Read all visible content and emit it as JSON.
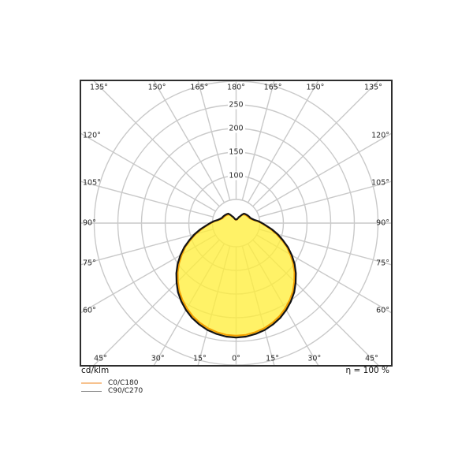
{
  "chart": {
    "angle_labels": {
      "top": [
        "135°",
        "150°",
        "165°",
        "180°",
        "165°",
        "150°",
        "135°"
      ],
      "left": [
        "120°",
        "105°",
        "90°",
        "75°",
        "60°"
      ],
      "right": [
        "120°",
        "105°",
        "90°",
        "75°",
        "60°"
      ],
      "bottom": [
        "45°",
        "30°",
        "15°",
        "0°",
        "15°",
        "30°",
        "45°"
      ]
    }
  },
  "footer": {
    "unit_label": "cd/klm",
    "efficiency_label": "η = 100 %"
  },
  "legend": {
    "items": [
      {
        "label": "C0/C180",
        "swatch_color": "#f7c28e"
      },
      {
        "label": "C90/C270",
        "swatch_color": "#8d8d8d"
      }
    ]
  },
  "chart_data": {
    "type": "polar",
    "units": "cd/klm",
    "efficiency_percent": 100,
    "angle_tick_step_deg": 15,
    "angle_tick_labels_deg": [
      0,
      15,
      30,
      45,
      60,
      75,
      90,
      105,
      120,
      135,
      150,
      165,
      180
    ],
    "radial_rings": [
      50,
      100,
      150,
      200,
      250,
      300
    ],
    "radial_tick_labels": [
      "100",
      "150",
      "200",
      "250"
    ],
    "grid_color": "#c9c9c9",
    "fill_color": "#ffee3c",
    "fill_opacity": 0.78,
    "symmetric_mirror": true,
    "gamma_angles_deg": [
      0,
      5,
      10,
      15,
      20,
      25,
      30,
      35,
      40,
      45,
      50,
      55,
      60,
      65,
      70,
      75,
      80,
      85,
      90,
      95,
      100,
      105,
      110,
      115,
      120,
      125,
      130,
      135,
      140,
      145,
      150,
      155,
      160,
      165,
      170,
      175,
      180
    ],
    "series": [
      {
        "name": "C0/C180",
        "color": "#f5a000",
        "values": [
          238,
          237,
          234,
          230,
          224,
          217,
          208,
          198,
          187,
          174,
          161,
          147,
          132,
          118,
          102,
          88,
          74,
          62,
          53,
          45,
          37,
          33,
          30,
          29,
          28,
          27,
          26,
          25,
          24,
          20,
          15,
          13,
          10,
          8,
          7,
          7,
          7
        ]
      },
      {
        "name": "C90/C270",
        "color": "#141414",
        "values": [
          242,
          241,
          238,
          234,
          228,
          221,
          212,
          202,
          191,
          178,
          165,
          151,
          136,
          121,
          105,
          91,
          77,
          64,
          55,
          47,
          39,
          35,
          32,
          31,
          30,
          29,
          28,
          27,
          26,
          22,
          17,
          14,
          11,
          9,
          8,
          8,
          8
        ]
      }
    ]
  }
}
